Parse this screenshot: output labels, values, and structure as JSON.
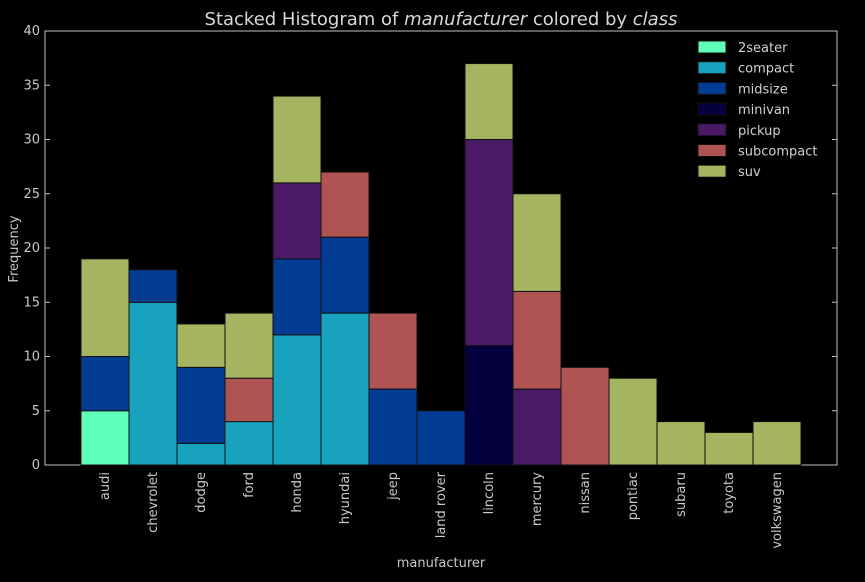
{
  "chart_data": {
    "type": "bar",
    "stacked": true,
    "title_parts": [
      {
        "text": "Stacked Histogram of ",
        "italic": false
      },
      {
        "text": "manufacturer",
        "italic": true
      },
      {
        "text": " colored by ",
        "italic": false
      },
      {
        "text": "class",
        "italic": true
      }
    ],
    "xlabel": "manufacturer",
    "ylabel": "Frequency",
    "ylim": [
      0,
      40
    ],
    "yticks": [
      0,
      5,
      10,
      15,
      20,
      25,
      30,
      35,
      40
    ],
    "grid": false,
    "legend_position": "top-right",
    "categories": [
      "audi",
      "chevrolet",
      "dodge",
      "ford",
      "honda",
      "hyundai",
      "jeep",
      "land rover",
      "lincoln",
      "mercury",
      "nissan",
      "pontiac",
      "subaru",
      "toyota",
      "volkswagen"
    ],
    "series": [
      {
        "name": "2seater",
        "color": "#5effb8",
        "values": [
          5,
          0,
          0,
          0,
          0,
          0,
          0,
          0,
          0,
          0,
          0,
          0,
          0,
          0,
          0
        ]
      },
      {
        "name": "compact",
        "color": "#18a2bd",
        "values": [
          0,
          15,
          2,
          4,
          12,
          14,
          0,
          0,
          0,
          0,
          0,
          0,
          0,
          0,
          0
        ]
      },
      {
        "name": "midsize",
        "color": "#033c93",
        "values": [
          5,
          3,
          7,
          0,
          7,
          7,
          7,
          5,
          0,
          0,
          0,
          0,
          0,
          0,
          0
        ]
      },
      {
        "name": "minivan",
        "color": "#04003f",
        "values": [
          0,
          0,
          0,
          0,
          0,
          0,
          0,
          0,
          11,
          0,
          0,
          0,
          0,
          0,
          0
        ]
      },
      {
        "name": "pickup",
        "color": "#4b1a66",
        "values": [
          0,
          0,
          0,
          0,
          7,
          0,
          0,
          0,
          19,
          7,
          0,
          0,
          0,
          0,
          0
        ]
      },
      {
        "name": "subcompact",
        "color": "#b05353",
        "values": [
          0,
          0,
          0,
          4,
          0,
          6,
          7,
          0,
          0,
          9,
          9,
          0,
          0,
          0,
          0
        ]
      },
      {
        "name": "suv",
        "color": "#a5b461",
        "values": [
          9,
          0,
          4,
          6,
          8,
          0,
          0,
          0,
          7,
          9,
          0,
          8,
          4,
          3,
          4
        ]
      }
    ]
  }
}
